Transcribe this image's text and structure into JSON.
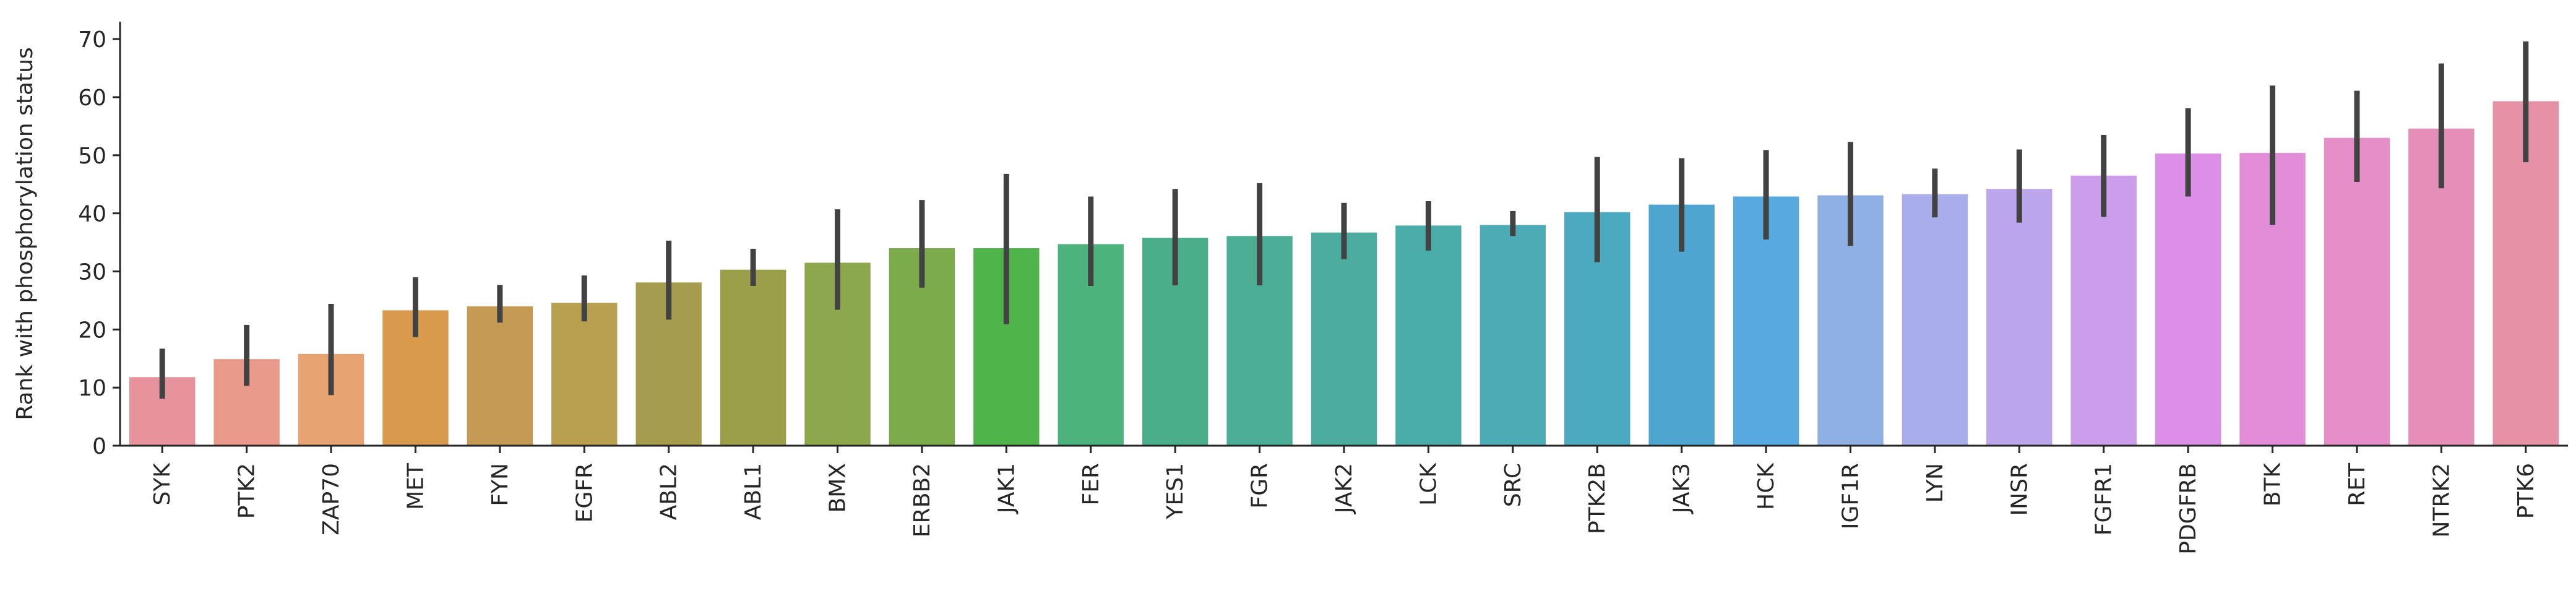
{
  "chart_data": {
    "type": "bar",
    "title": "",
    "xlabel": "",
    "ylabel": "Rank with phosphorylation status",
    "ylim": [
      0,
      73
    ],
    "yticks": [
      0,
      10,
      20,
      30,
      40,
      50,
      60,
      70
    ],
    "grid": false,
    "error_bars": true,
    "categories": [
      "SYK",
      "PTK2",
      "ZAP70",
      "MET",
      "FYN",
      "EGFR",
      "ABL2",
      "ABL1",
      "BMX",
      "ERBB2",
      "JAK1",
      "FER",
      "YES1",
      "FGR",
      "JAK2",
      "LCK",
      "SRC",
      "PTK2B",
      "JAK3",
      "HCK",
      "IGF1R",
      "LYN",
      "INSR",
      "FGFR1",
      "PDGFRB",
      "BTK",
      "RET",
      "NTRK2",
      "PTK6"
    ],
    "values": [
      11.8,
      14.9,
      15.8,
      23.3,
      24.0,
      24.6,
      28.1,
      30.3,
      31.5,
      34.0,
      34.0,
      34.7,
      35.8,
      36.1,
      36.7,
      37.9,
      38.0,
      40.2,
      41.5,
      42.9,
      43.1,
      43.3,
      44.2,
      46.5,
      50.3,
      50.4,
      53.0,
      54.6,
      59.3
    ],
    "error_low": [
      8.1,
      10.3,
      8.7,
      18.7,
      21.2,
      21.4,
      21.7,
      27.5,
      23.4,
      27.2,
      20.9,
      27.5,
      27.6,
      27.6,
      32.1,
      33.6,
      36.1,
      31.6,
      33.4,
      35.5,
      34.4,
      39.3,
      38.4,
      39.4,
      42.9,
      38.0,
      45.4,
      44.3,
      48.8
    ],
    "error_high": [
      16.7,
      20.8,
      24.4,
      29.0,
      27.7,
      29.3,
      35.3,
      33.9,
      40.7,
      42.3,
      46.8,
      42.9,
      44.2,
      45.2,
      41.8,
      42.1,
      40.4,
      49.7,
      49.5,
      50.9,
      52.3,
      47.7,
      51.0,
      53.5,
      58.1,
      62.0,
      61.1,
      65.8,
      69.6
    ],
    "colors": [
      "#e8939b",
      "#e99a8a",
      "#e8a373",
      "#d99a4e",
      "#c49a55",
      "#b8a050",
      "#a69c4d",
      "#9c9f49",
      "#8da84c",
      "#7cab4c",
      "#4fb54a",
      "#4cb37d",
      "#4aae8a",
      "#4bae95",
      "#4bac9f",
      "#4bada9",
      "#4cabb5",
      "#4caac0",
      "#4da5d0",
      "#58a9df",
      "#8fb0e4",
      "#a9aeeb",
      "#bca6eb",
      "#cc9deb",
      "#dc8fe6",
      "#e38dd9",
      "#e58ec8",
      "#e48eb8",
      "#e592a7"
    ]
  }
}
